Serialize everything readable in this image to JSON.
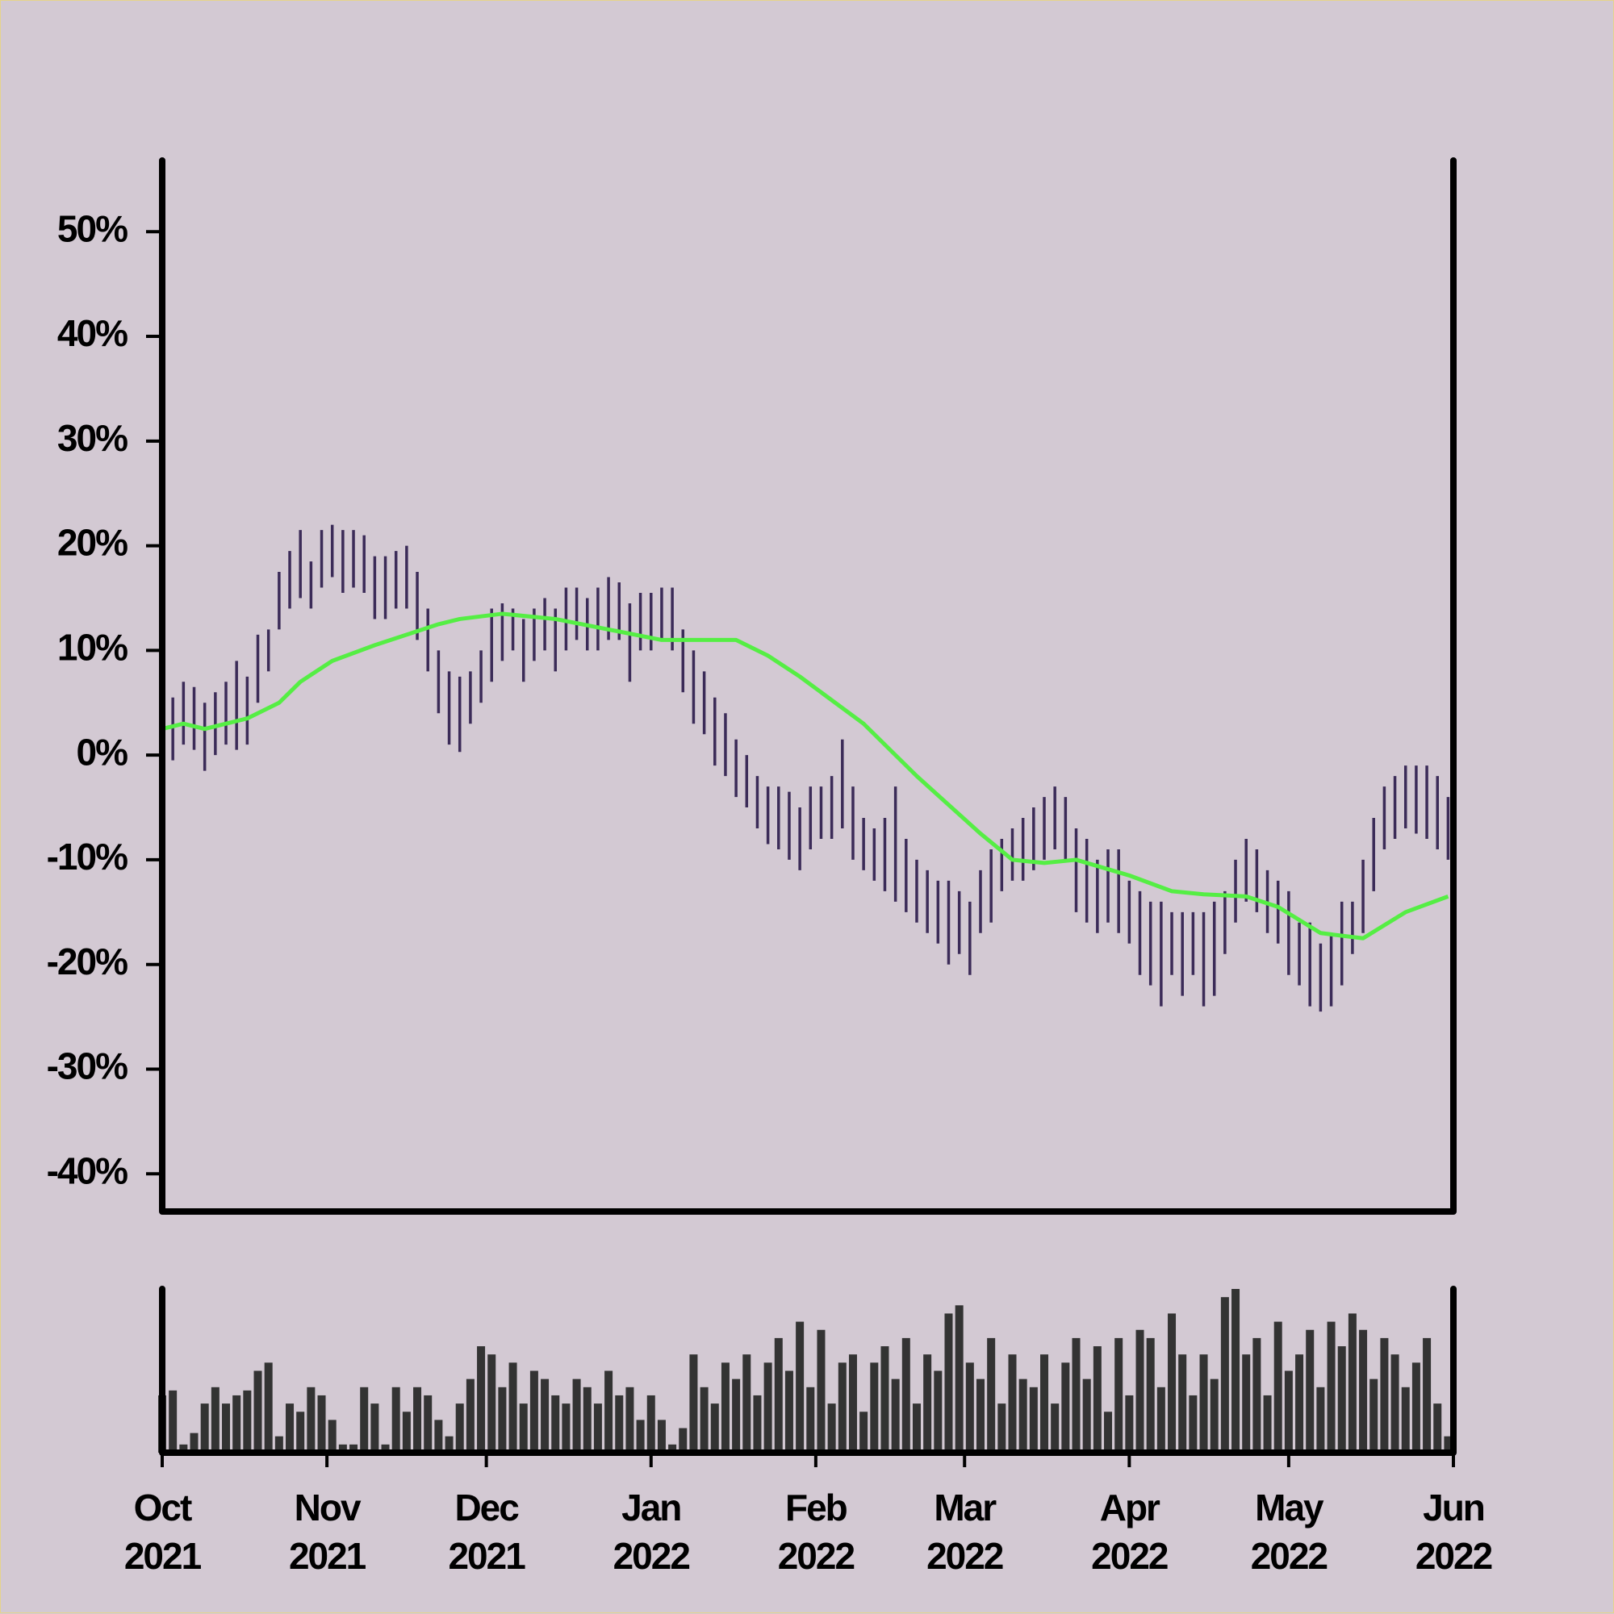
{
  "chart_data": {
    "type": "ohlc",
    "x": [
      0,
      2,
      4,
      6,
      8,
      10,
      12,
      14,
      16,
      18,
      20,
      22,
      24,
      26,
      28,
      30,
      32,
      34,
      36,
      38,
      40,
      42,
      44,
      46,
      48,
      50,
      52,
      54,
      56,
      58,
      60,
      62,
      64,
      66,
      68,
      70,
      72,
      74,
      76,
      78,
      80,
      82,
      84,
      86,
      88,
      90,
      92,
      94,
      96,
      98,
      100,
      102,
      104,
      106,
      108,
      110,
      112,
      114,
      116,
      118,
      120,
      122,
      124,
      126,
      128,
      130,
      132,
      134,
      136,
      138,
      140,
      142,
      144,
      146,
      148,
      150,
      152,
      154,
      156,
      158,
      160,
      162,
      164,
      166,
      168,
      170,
      172,
      174,
      176,
      178,
      180,
      182,
      184,
      186,
      188,
      190,
      192,
      194,
      196,
      198,
      200,
      202,
      204,
      206,
      208,
      210,
      212,
      214,
      216,
      218,
      220,
      222,
      224,
      226,
      228,
      230,
      232,
      234,
      236,
      238,
      240,
      242
    ],
    "high": [
      6,
      5.5,
      7,
      6.5,
      5,
      6,
      7,
      9,
      7.5,
      11.5,
      12,
      17.5,
      19.5,
      21.5,
      18.5,
      21.5,
      22,
      21.5,
      21.5,
      21,
      19,
      19,
      19.5,
      20,
      17.5,
      14,
      10,
      8,
      7.5,
      8,
      10,
      14,
      14.5,
      14,
      13,
      14,
      15,
      14,
      16,
      16,
      15,
      16,
      17,
      16.5,
      14.5,
      15.5,
      15.5,
      16,
      16,
      12,
      10,
      8,
      5.5,
      4,
      1.5,
      0,
      -2,
      -3,
      -3,
      -3.5,
      -5,
      -3,
      -3,
      -2,
      1.5,
      -3,
      -6,
      -7,
      -6,
      -3,
      -8,
      -10,
      -11,
      -12,
      -12,
      -13,
      -14,
      -11,
      -9,
      -8,
      -7,
      -6,
      -5,
      -4,
      -3,
      -4,
      -7,
      -8,
      -10,
      -9,
      -9,
      -12,
      -13,
      -14,
      -14,
      -15,
      -15,
      -15,
      -15,
      -14,
      -13,
      -10,
      -8,
      -9,
      -11,
      -12,
      -13,
      -16,
      -16,
      -18,
      -17,
      -14,
      -14,
      -10,
      -6,
      -3,
      -2,
      -1,
      -1,
      -1,
      -2,
      -4
    ],
    "low": [
      0,
      -0.5,
      1,
      0.5,
      -1.5,
      0,
      1,
      0.5,
      1,
      5,
      8,
      12,
      14,
      15,
      14,
      16,
      17,
      15.5,
      16,
      15.5,
      13,
      13,
      14,
      14,
      11,
      8,
      4,
      1,
      0.3,
      3,
      5,
      7,
      9,
      10,
      7,
      9,
      10,
      8,
      10,
      11,
      10,
      10,
      11,
      11,
      7,
      10,
      10,
      11,
      10,
      6,
      3,
      2,
      -1,
      -2,
      -4,
      -5,
      -7,
      -8.5,
      -9,
      -10,
      -11,
      -9,
      -8,
      -8,
      -7,
      -10,
      -11,
      -12,
      -13,
      -14,
      -15,
      -16,
      -17,
      -18,
      -20,
      -19,
      -21,
      -17,
      -16,
      -13,
      -12,
      -12,
      -11,
      -10,
      -9,
      -10,
      -15,
      -16,
      -17,
      -16,
      -17,
      -18,
      -21,
      -22,
      -24,
      -21,
      -23,
      -21,
      -24,
      -23,
      -19,
      -16,
      -14,
      -15,
      -17,
      -18,
      -21,
      -22,
      -24,
      -24.5,
      -24,
      -22,
      -19,
      -17,
      -13,
      -9,
      -8,
      -7,
      -7.5,
      -8,
      -9,
      -10
    ],
    "bar_color": "#3b2b58",
    "ma_x": [
      0,
      4,
      8,
      16,
      22,
      26,
      32,
      40,
      46,
      52,
      56,
      64,
      74,
      84,
      94,
      102,
      108,
      114,
      120,
      124,
      132,
      142,
      154,
      160,
      166,
      172,
      182,
      190,
      196,
      204,
      210,
      218,
      226,
      234,
      242
    ],
    "ma": [
      2.5,
      3,
      2.5,
      3.5,
      5,
      7,
      9,
      10.5,
      11.5,
      12.5,
      13,
      13.5,
      13,
      12,
      11,
      11,
      11,
      9.5,
      7.5,
      6,
      3,
      -2,
      -7.5,
      -10,
      -10.3,
      -10,
      -11.5,
      -13,
      -13.3,
      -13.5,
      -14.5,
      -17,
      -17.5,
      -15,
      -13.5
    ],
    "ma_color": "#55ee44",
    "volume": [
      35,
      38,
      5,
      12,
      30,
      40,
      30,
      35,
      38,
      50,
      55,
      10,
      30,
      25,
      40,
      35,
      20,
      5,
      5,
      40,
      30,
      5,
      40,
      25,
      40,
      35,
      20,
      10,
      30,
      45,
      65,
      60,
      40,
      55,
      30,
      50,
      45,
      35,
      30,
      45,
      40,
      30,
      50,
      35,
      40,
      20,
      35,
      20,
      5,
      15,
      60,
      40,
      30,
      55,
      45,
      60,
      35,
      55,
      70,
      50,
      80,
      40,
      75,
      30,
      55,
      60,
      25,
      55,
      65,
      45,
      70,
      30,
      60,
      50,
      85,
      90,
      55,
      45,
      70,
      30,
      60,
      45,
      40,
      60,
      30,
      55,
      70,
      45,
      65,
      25,
      70,
      35,
      75,
      70,
      40,
      85,
      60,
      35,
      60,
      45,
      95,
      100,
      60,
      70,
      35,
      80,
      50,
      60,
      75,
      40,
      80,
      65,
      85,
      75,
      45,
      70,
      60,
      40,
      55,
      70,
      30,
      10
    ],
    "volume_color": "#333333",
    "volume_ylim": [
      0,
      100
    ],
    "xlim": [
      0,
      243
    ],
    "xticks": [
      {
        "value": 0,
        "label": "Oct\n2021"
      },
      {
        "value": 31,
        "label": "Nov\n2021"
      },
      {
        "value": 61,
        "label": "Dec\n2021"
      },
      {
        "value": 92,
        "label": "Jan\n2022"
      },
      {
        "value": 123,
        "label": "Feb\n2022"
      },
      {
        "value": 151,
        "label": "Mar\n2022"
      },
      {
        "value": 182,
        "label": "Apr\n2022"
      },
      {
        "value": 212,
        "label": "May\n2022"
      },
      {
        "value": 243,
        "label": "Jun\n2022"
      }
    ],
    "ylim": [
      -43.6,
      56.8
    ],
    "yticks": [
      {
        "value": -40,
        "label": "-40%"
      },
      {
        "value": -30,
        "label": "-30%"
      },
      {
        "value": -20,
        "label": "-20%"
      },
      {
        "value": -10,
        "label": "-10%"
      },
      {
        "value": 0,
        "label": "0%"
      },
      {
        "value": 10,
        "label": "10%"
      },
      {
        "value": 20,
        "label": "20%"
      },
      {
        "value": 30,
        "label": "30%"
      },
      {
        "value": 40,
        "label": "40%"
      },
      {
        "value": 50,
        "label": "50%"
      }
    ]
  }
}
